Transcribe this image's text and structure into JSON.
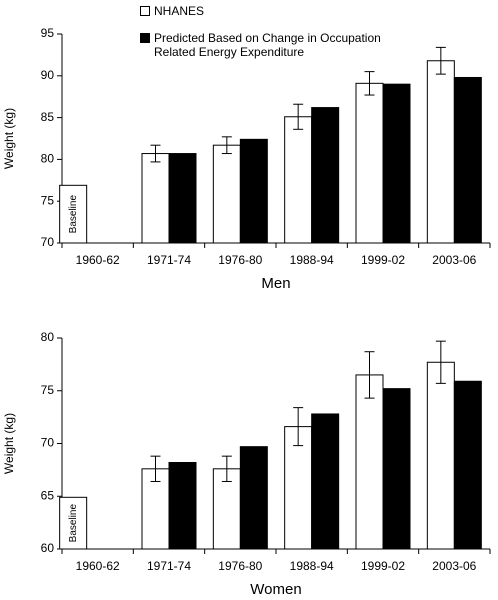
{
  "chart_data": [
    {
      "type": "bar",
      "categories": [
        "1960-62",
        "1971-74",
        "1976-80",
        "1988-94",
        "1999-02",
        "2003-06"
      ],
      "series": [
        {
          "name": "NHANES",
          "color": "#ffffff",
          "values": [
            76.9,
            80.7,
            81.7,
            85.1,
            89.1,
            91.8
          ],
          "errors": [
            null,
            1.0,
            1.0,
            1.5,
            1.4,
            1.6
          ]
        },
        {
          "name": "Predicted Based on Change in Occupation Related Energy Expenditure",
          "color": "#000000",
          "values": [
            null,
            80.7,
            82.4,
            86.2,
            89.0,
            89.8
          ]
        }
      ],
      "annotation": "Baseline",
      "xlabel": "Men",
      "ylabel": "Weight (kg)",
      "ylim": [
        70,
        95
      ],
      "yticks": [
        70,
        75,
        80,
        85,
        90,
        95
      ]
    },
    {
      "type": "bar",
      "categories": [
        "1960-62",
        "1971-74",
        "1976-80",
        "1988-94",
        "1999-02",
        "2003-06"
      ],
      "series": [
        {
          "name": "NHANES",
          "color": "#ffffff",
          "values": [
            64.9,
            67.6,
            67.6,
            71.6,
            76.5,
            77.7
          ],
          "errors": [
            null,
            1.2,
            1.2,
            1.8,
            2.2,
            2.0
          ]
        },
        {
          "name": "Predicted Based on Change in Occupation Related Energy Expenditure",
          "color": "#000000",
          "values": [
            null,
            68.2,
            69.7,
            72.8,
            75.2,
            75.9
          ]
        }
      ],
      "annotation": "Baseline",
      "xlabel": "Women",
      "ylabel": "Weight (kg)",
      "ylim": [
        60,
        80
      ],
      "yticks": [
        60,
        65,
        70,
        75,
        80
      ]
    }
  ]
}
